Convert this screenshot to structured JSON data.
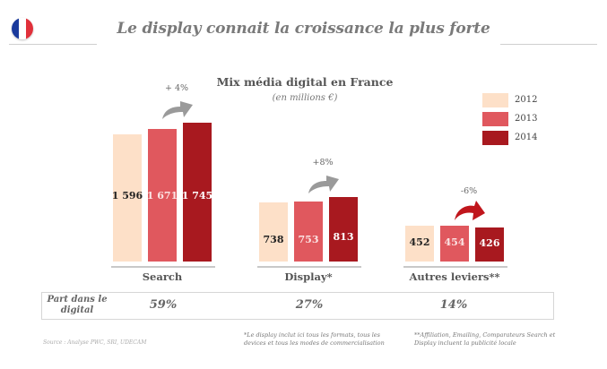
{
  "slide": {
    "title": "Le display connait la croissance la plus forte",
    "flag_icon": "france-flag-icon",
    "flag_colors": [
      "#1a3a9c",
      "#ffffff",
      "#e0303a"
    ]
  },
  "chart_data": {
    "type": "bar",
    "title": "Mix média digital en France",
    "subtitle": "(en millions €)",
    "categories": [
      "Search",
      "Display*",
      "Autres leviers**"
    ],
    "series": [
      {
        "name": "2012",
        "color": "#fde0c8",
        "label_color": "#222222",
        "values": [
          1596,
          738,
          452
        ],
        "labels": [
          "1 596",
          "738",
          "452"
        ]
      },
      {
        "name": "2013",
        "color": "#e0585e",
        "label_color": "#fbe3e3",
        "values": [
          1671,
          753,
          454
        ],
        "labels": [
          "1 671",
          "753",
          "454"
        ]
      },
      {
        "name": "2014",
        "color": "#a8191f",
        "label_color": "#ffffff",
        "values": [
          1745,
          813,
          426
        ],
        "labels": [
          "1 745",
          "813",
          "426"
        ]
      }
    ],
    "growth": [
      {
        "label": "+ 4%",
        "direction": "up",
        "color": "#9a9a9a"
      },
      {
        "label": "+8%",
        "direction": "up",
        "color": "#9a9a9a"
      },
      {
        "label": "-6%",
        "direction": "down",
        "color": "#c0161c"
      }
    ],
    "legend": [
      "2012",
      "2013",
      "2014"
    ],
    "legend_position": "top-right",
    "grid": false,
    "xlabel": "",
    "ylabel": ""
  },
  "share": {
    "header": "Part dans le digital",
    "values": [
      "59%",
      "27%",
      "14%"
    ]
  },
  "notes": {
    "display": "*Le display inclut ici tous les formats, tous les devices et tous les modes de commercialisation",
    "autres": "**Affiliation, Emailing, Comparateurs Search et Display incluent la publicité locale",
    "source": "Source : Analyse PWC, SRI, UDECAM"
  }
}
